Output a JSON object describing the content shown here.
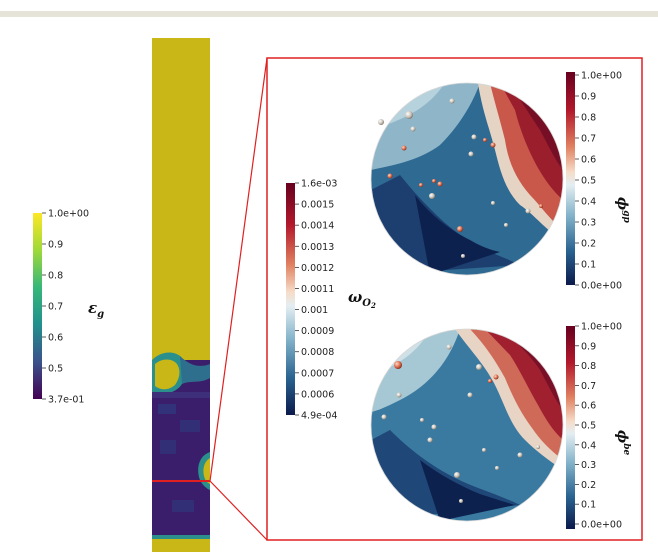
{
  "colorbars": {
    "epsilon": {
      "symbol_main": "ε",
      "symbol_sub": "g",
      "ticks": [
        "1.0e+00",
        "0.9",
        "0.8",
        "0.7",
        "0.6",
        "0.5",
        "3.7e-01"
      ]
    },
    "omega": {
      "symbol_main": "ω",
      "symbol_sub": "O",
      "symbol_subsub": "2",
      "ticks": [
        "1.6e-03",
        "0.0015",
        "0.0014",
        "0.0013",
        "0.0012",
        "0.0011",
        "0.001",
        "0.0009",
        "0.0008",
        "0.0007",
        "0.0006",
        "4.9e-04"
      ]
    },
    "phi_gp": {
      "symbol_main": "ϕ",
      "symbol_sup": "gp",
      "ticks": [
        "1.0e+00",
        "0.9",
        "0.8",
        "0.7",
        "0.6",
        "0.5",
        "0.4",
        "0.3",
        "0.2",
        "0.1",
        "0.0e+00"
      ]
    },
    "phi_be": {
      "symbol_main": "ϕ",
      "symbol_sup": "be",
      "ticks": [
        "1.0e+00",
        "0.9",
        "0.8",
        "0.7",
        "0.6",
        "0.5",
        "0.4",
        "0.3",
        "0.2",
        "0.1",
        "0.0e+00"
      ]
    }
  },
  "colors": {
    "viridis_top": "#fde725",
    "viridis_bottom": "#440154",
    "coolwarm_top": "#67001f",
    "coolwarm_bottom": "#0b1a4b",
    "zoom_box": "#e02020"
  }
}
